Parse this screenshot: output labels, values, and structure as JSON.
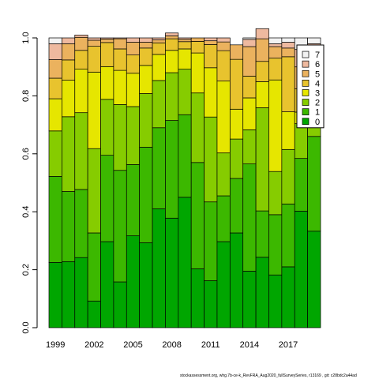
{
  "chart_data": {
    "type": "bar",
    "stacked": true,
    "title": "",
    "xlabel": "",
    "ylabel": "",
    "ylim": [
      0,
      1
    ],
    "yticks": [
      "0.0",
      "0.2",
      "0.4",
      "0.6",
      "0.8",
      "1.0"
    ],
    "categories": [
      "1999",
      "2000",
      "2001",
      "2002",
      "2003",
      "2004",
      "2005",
      "2006",
      "2007",
      "2008",
      "2009",
      "2010",
      "2011",
      "2012",
      "2013",
      "2014",
      "2015",
      "2016",
      "2017",
      "2018",
      "2019"
    ],
    "xtick_labels": [
      "1999",
      "2002",
      "2005",
      "2008",
      "2011",
      "2014",
      "2017"
    ],
    "legend_position": "top-right",
    "series": [
      {
        "name": "0",
        "color": "#00a600",
        "values": [
          0.225,
          0.228,
          0.242,
          0.092,
          0.297,
          0.158,
          0.317,
          0.293,
          0.41,
          0.378,
          0.45,
          0.203,
          0.162,
          0.297,
          0.327,
          0.195,
          0.243,
          0.182,
          0.21,
          0.402,
          0.333
        ]
      },
      {
        "name": "1",
        "color": "#3cb800",
        "values": [
          0.297,
          0.242,
          0.235,
          0.235,
          0.298,
          0.385,
          0.246,
          0.33,
          0.28,
          0.337,
          0.285,
          0.367,
          0.272,
          0.158,
          0.188,
          0.37,
          0.16,
          0.208,
          0.217,
          0.182,
          0.327
        ]
      },
      {
        "name": "2",
        "color": "#86cc00",
        "values": [
          0.157,
          0.258,
          0.265,
          0.291,
          0.193,
          0.227,
          0.2,
          0.185,
          0.163,
          0.165,
          0.157,
          0.24,
          0.293,
          0.148,
          0.136,
          0.118,
          0.356,
          0.149,
          0.188,
          0.12,
          0.09
        ]
      },
      {
        "name": "3",
        "color": "#e6e600",
        "values": [
          0.111,
          0.126,
          0.15,
          0.264,
          0.113,
          0.118,
          0.115,
          0.097,
          0.09,
          0.077,
          0.07,
          0.138,
          0.17,
          0.248,
          0.103,
          0.11,
          0.09,
          0.316,
          0.13,
          0.04,
          0.04
        ]
      },
      {
        "name": "4",
        "color": "#e8c32e",
        "values": [
          0.071,
          0.07,
          0.065,
          0.089,
          0.083,
          0.074,
          0.063,
          0.06,
          0.04,
          0.04,
          0.025,
          0.04,
          0.08,
          0.105,
          0.172,
          0.075,
          0.07,
          0.075,
          0.19,
          0.08,
          0.06
        ]
      },
      {
        "name": "5",
        "color": "#ebb25e",
        "values": [
          0.064,
          0.056,
          0.045,
          0.021,
          0.012,
          0.035,
          0.044,
          0.02,
          0.01,
          0.01,
          0.008,
          0.012,
          0.013,
          0.03,
          0.05,
          0.102,
          0.078,
          0.04,
          0.03,
          0.076,
          0.08
        ]
      },
      {
        "name": "6",
        "color": "#eeb99f",
        "values": [
          0.055,
          0.02,
          0.008,
          0.008,
          0.004,
          0.003,
          0.015,
          0.015,
          0.007,
          0.01,
          0.005,
          0.0,
          0.01,
          0.014,
          0.0,
          0.025,
          0.035,
          0.01,
          0.02,
          0.06,
          0.05
        ]
      },
      {
        "name": "7",
        "color": "#f2f2f2",
        "values": [
          0.02,
          0.0,
          0.0,
          0.0,
          0.0,
          0.0,
          0.0,
          0.0,
          0.0,
          0.0,
          0.0,
          0.0,
          0.0,
          0.0,
          0.0,
          0.005,
          0.0,
          0.02,
          0.015,
          0.04,
          0.02
        ]
      }
    ]
  },
  "footer": "stockassessment.org, whg.7b-ce-k_RevFRA_Aug2020_fullSurveySeries, r13169 , git: c28bdc2a44ad"
}
